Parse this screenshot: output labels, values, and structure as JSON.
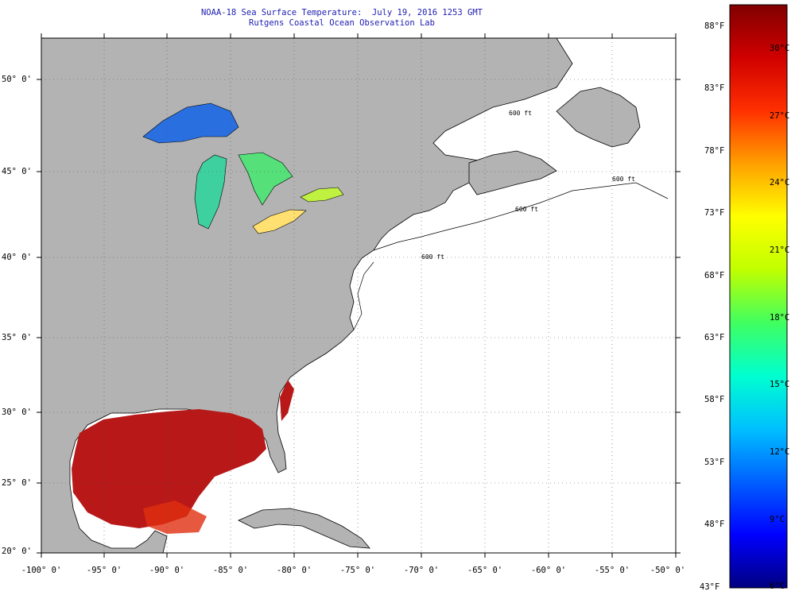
{
  "title": "NOAA-18 Sea Surface Temperature:  July 19, 2016 1253 GMT",
  "subtitle": "Rutgens Coastal Ocean Observation Lab",
  "longitudes": [
    "-100° 0'",
    "-95° 0'",
    "-90° 0'",
    "-85° 0'",
    "-80° 0'",
    "-75° 0'",
    "-70° 0'",
    "-65° 0'",
    "-60° 0'",
    "-55° 0'",
    "-50° 0'"
  ],
  "latitudes": [
    "50° 0'",
    "45° 0'",
    "40° 0'",
    "35° 0'",
    "30° 0'",
    "25° 0'",
    "20° 0'"
  ],
  "colorbar": {
    "fahrenheit": [
      "88°F",
      "83°F",
      "78°F",
      "73°F",
      "68°F",
      "63°F",
      "58°F",
      "53°F",
      "48°F",
      "43°F"
    ],
    "celsius": [
      "30°C",
      "27°C",
      "24°C",
      "21°C",
      "18°C",
      "15°C",
      "12°C",
      "9°C",
      "6°C"
    ],
    "gradient": [
      "#000080",
      "#0000ff",
      "#0060ff",
      "#00c0ff",
      "#00ffd0",
      "#40ff60",
      "#c0ff00",
      "#ffff00",
      "#ffa000",
      "#ff3000",
      "#d00000",
      "#800000"
    ]
  },
  "isobath_labels": [
    "600 ft",
    "600 ft",
    "600 ft",
    "600 ft"
  ],
  "colors": {
    "land": "#b3b3b3",
    "ocean": "#ffffff",
    "grid": "#555555",
    "title": "#1d1db0"
  }
}
